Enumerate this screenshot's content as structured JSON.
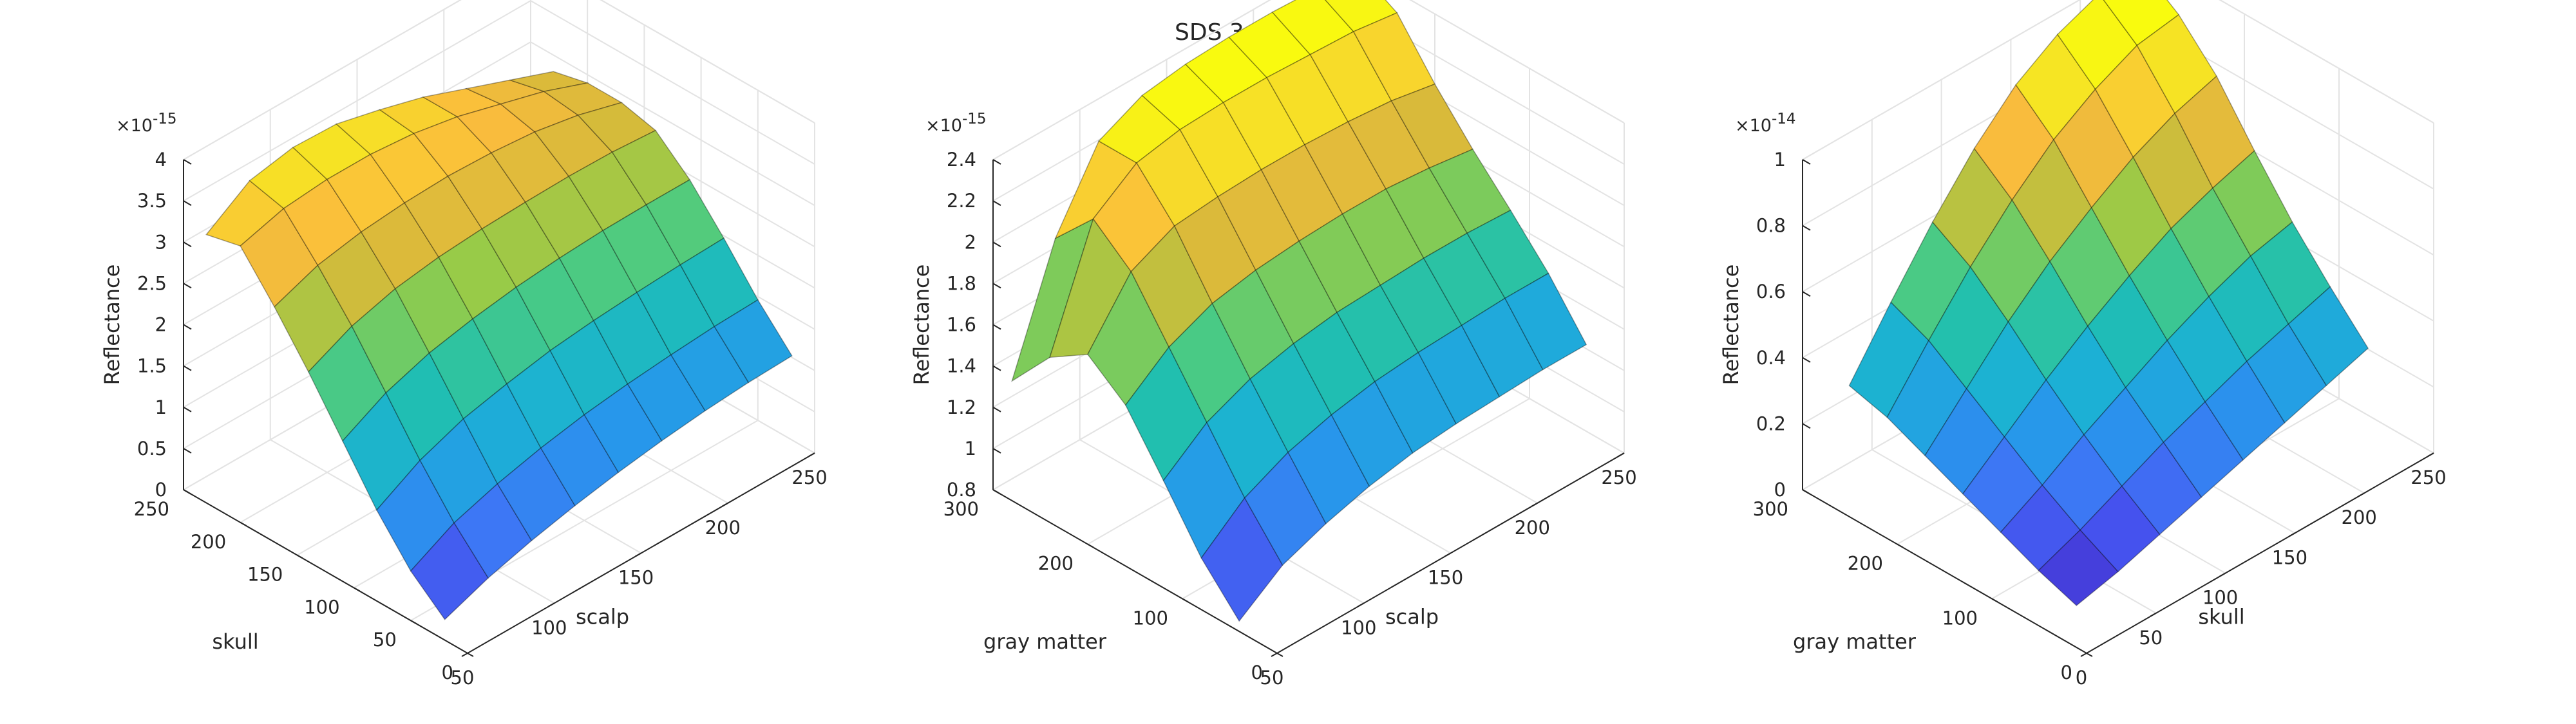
{
  "title": "SDS 3.5 cm, Gate 8",
  "colormap": [
    "#3e26a8",
    "#4746eb",
    "#3e75f5",
    "#2797eb",
    "#1cb1d4",
    "#20bfb0",
    "#4fcb7f",
    "#96cb48",
    "#d7ba3a",
    "#fbbc3d",
    "#f6e523",
    "#f9fb0e"
  ],
  "chart_data": [
    {
      "type": "surface",
      "zlabel": "Reflectance",
      "exponent": "×10",
      "exponent_power": "-15",
      "x_axis": {
        "label": "scalp",
        "ticks": [
          50,
          100,
          150,
          200,
          250
        ],
        "tick_labels": [
          "50",
          "100",
          "150",
          "200",
          "250"
        ],
        "range": [
          50,
          250
        ],
        "values": [
          50,
          75,
          100,
          125,
          150,
          175,
          200,
          225,
          250
        ]
      },
      "y_axis": {
        "label": "skull",
        "ticks": [
          0,
          50,
          100,
          150,
          200,
          250
        ],
        "tick_labels": [
          "0",
          "50",
          "100",
          "150",
          "200",
          "250"
        ],
        "range": [
          0,
          250
        ],
        "values": [
          20,
          50,
          80,
          110,
          140,
          170,
          200,
          230
        ]
      },
      "z_axis": {
        "ticks": [
          0,
          0.5,
          1,
          1.5,
          2,
          2.5,
          3,
          3.5,
          4
        ],
        "tick_labels": [
          "0",
          "0.5",
          "1",
          "1.5",
          "2",
          "2.5",
          "3",
          "3.5",
          "4"
        ],
        "range": [
          0,
          4
        ]
      },
      "z": [
        [
          0.25,
          0.45,
          0.6,
          0.72,
          0.82,
          0.9,
          0.96,
          1.0,
          1.02
        ],
        [
          0.6,
          0.88,
          1.05,
          1.18,
          1.28,
          1.35,
          1.4,
          1.44,
          1.46
        ],
        [
          1.1,
          1.4,
          1.6,
          1.72,
          1.82,
          1.88,
          1.92,
          1.95,
          1.97
        ],
        [
          1.7,
          1.98,
          2.16,
          2.27,
          2.35,
          2.4,
          2.43,
          2.44,
          2.44
        ],
        [
          2.3,
          2.55,
          2.7,
          2.78,
          2.82,
          2.84,
          2.85,
          2.84,
          2.8
        ],
        [
          2.85,
          3.05,
          3.15,
          3.2,
          3.22,
          3.2,
          3.15,
          3.05,
          2.9
        ],
        [
          3.35,
          3.5,
          3.55,
          3.55,
          3.5,
          3.4,
          3.25,
          3.1,
          2.9
        ],
        [
          3.25,
          3.6,
          3.7,
          3.68,
          3.55,
          3.4,
          3.2,
          3.0,
          2.8
        ]
      ]
    },
    {
      "type": "surface",
      "zlabel": "Reflectance",
      "exponent": "×10",
      "exponent_power": "-15",
      "x_axis": {
        "label": "scalp",
        "ticks": [
          50,
          100,
          150,
          200,
          250
        ],
        "tick_labels": [
          "50",
          "100",
          "150",
          "200",
          "250"
        ],
        "range": [
          50,
          250
        ],
        "values": [
          50,
          75,
          100,
          125,
          150,
          175,
          200,
          225,
          250
        ]
      },
      "y_axis": {
        "label": "gray matter",
        "ticks": [
          0,
          100,
          200,
          300
        ],
        "tick_labels": [
          "0",
          "100",
          "200",
          "300"
        ],
        "range": [
          0,
          300
        ],
        "values": [
          40,
          80,
          120,
          160,
          200,
          240,
          280
        ]
      },
      "z_axis": {
        "ticks": [
          0.8,
          1,
          1.2,
          1.4,
          1.6,
          1.8,
          2,
          2.2,
          2.4
        ],
        "tick_labels": [
          "0.8",
          "1",
          "1.2",
          "1.4",
          "1.6",
          "1.8",
          "2",
          "2.2",
          "2.4"
        ],
        "range": [
          0.8,
          2.4
        ]
      },
      "z": [
        [
          0.85,
          1.0,
          1.08,
          1.14,
          1.18,
          1.2,
          1.21,
          1.22,
          1.22
        ],
        [
          1.05,
          1.22,
          1.32,
          1.38,
          1.42,
          1.44,
          1.45,
          1.46,
          1.46
        ],
        [
          1.32,
          1.48,
          1.57,
          1.62,
          1.65,
          1.66,
          1.67,
          1.67,
          1.66
        ],
        [
          1.58,
          1.74,
          1.83,
          1.87,
          1.89,
          1.9,
          1.9,
          1.88,
          1.85
        ],
        [
          1.72,
          2.0,
          2.1,
          2.12,
          2.13,
          2.13,
          2.12,
          2.1,
          2.06
        ],
        [
          1.6,
          2.15,
          2.3,
          2.34,
          2.35,
          2.35,
          2.34,
          2.33,
          2.3
        ],
        [
          1.38,
          1.95,
          2.3,
          2.4,
          2.43,
          2.44,
          2.44,
          2.43,
          2.4
        ]
      ]
    },
    {
      "type": "surface",
      "zlabel": "Reflectance",
      "exponent": "×10",
      "exponent_power": "-14",
      "x_axis": {
        "label": "skull",
        "ticks": [
          0,
          50,
          100,
          150,
          200,
          250
        ],
        "tick_labels": [
          "0",
          "50",
          "100",
          "150",
          "200",
          "250"
        ],
        "range": [
          0,
          250
        ],
        "values": [
          20,
          50,
          80,
          110,
          140,
          170,
          200,
          230
        ]
      },
      "y_axis": {
        "label": "gray matter",
        "ticks": [
          0,
          100,
          200,
          300
        ],
        "tick_labels": [
          "0",
          "100",
          "200",
          "300"
        ],
        "range": [
          0,
          300
        ],
        "values": [
          40,
          80,
          120,
          160,
          200,
          240,
          280
        ]
      },
      "z_axis": {
        "ticks": [
          0,
          0.2,
          0.4,
          0.6,
          0.8,
          1
        ],
        "tick_labels": [
          "0",
          "0.2",
          "0.4",
          "0.6",
          "0.8",
          "1"
        ],
        "range": [
          0,
          1
        ]
      },
      "z": [
        [
          0.03,
          0.06,
          0.1,
          0.14,
          0.18,
          0.22,
          0.26,
          0.3
        ],
        [
          0.07,
          0.12,
          0.18,
          0.24,
          0.29,
          0.34,
          0.38,
          0.42
        ],
        [
          0.12,
          0.19,
          0.27,
          0.34,
          0.41,
          0.47,
          0.52,
          0.55
        ],
        [
          0.17,
          0.27,
          0.37,
          0.46,
          0.54,
          0.61,
          0.66,
          0.7
        ],
        [
          0.22,
          0.35,
          0.48,
          0.59,
          0.68,
          0.76,
          0.82,
          0.86
        ],
        [
          0.27,
          0.43,
          0.58,
          0.71,
          0.82,
          0.9,
          0.96,
          0.98
        ],
        [
          0.3,
          0.48,
          0.65,
          0.8,
          0.92,
          1.0,
          1.05,
          1.06
        ]
      ]
    }
  ]
}
